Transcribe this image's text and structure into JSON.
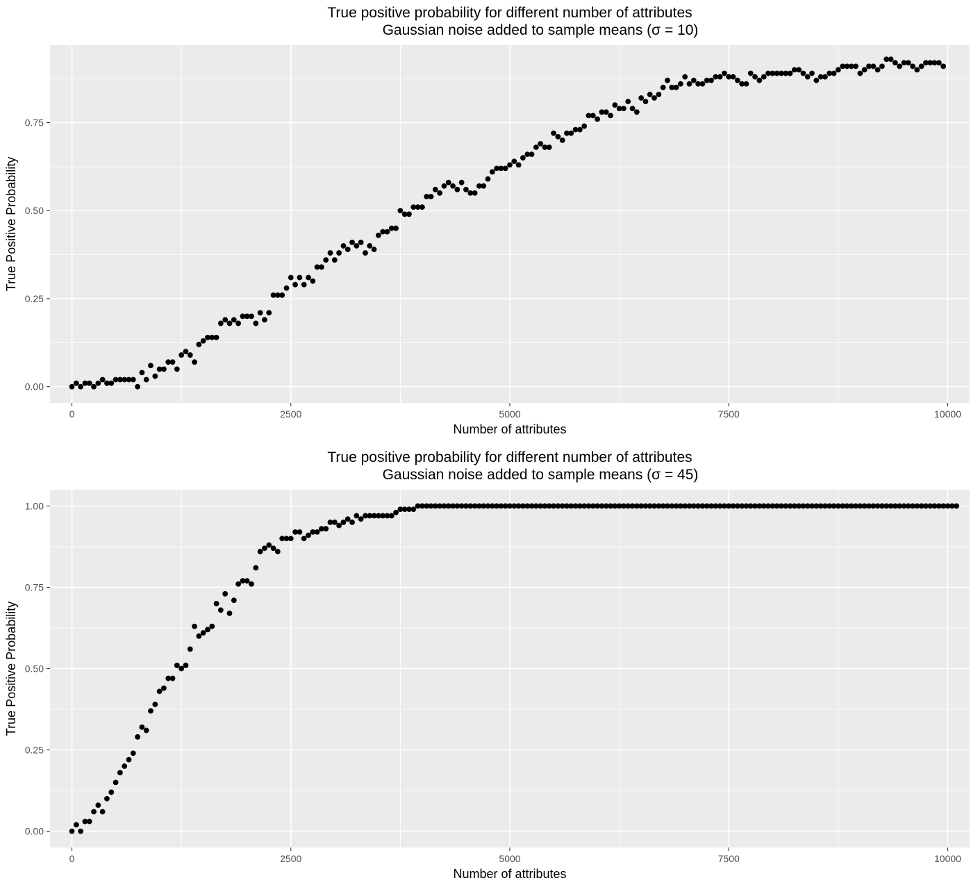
{
  "chart_data": [
    {
      "type": "scatter",
      "title": "True positive probability for different number of attributes",
      "subtitle": "Gaussian noise added to sample means  (σ = 10)",
      "xlabel": "Number of attributes",
      "ylabel": "True Positive Probability",
      "xlim": [
        -250,
        10250
      ],
      "ylim": [
        -0.046,
        0.97
      ],
      "xticks": [
        0,
        2500,
        5000,
        7500,
        10000
      ],
      "xtick_labels": [
        "0",
        "2500",
        "5000",
        "7500",
        "10000"
      ],
      "yticks": [
        0,
        0.25,
        0.5,
        0.75
      ],
      "ytick_labels": [
        "0.00",
        "0.25",
        "0.50",
        "0.75"
      ],
      "grid": true,
      "legend": "none",
      "point_color": "#000000",
      "x_start": 0,
      "x_step": 50,
      "y": [
        0.0,
        0.01,
        0.0,
        0.01,
        0.01,
        0.0,
        0.01,
        0.02,
        0.01,
        0.01,
        0.02,
        0.02,
        0.02,
        0.02,
        0.02,
        0.0,
        0.04,
        0.02,
        0.06,
        0.03,
        0.05,
        0.05,
        0.07,
        0.07,
        0.05,
        0.09,
        0.1,
        0.09,
        0.07,
        0.12,
        0.13,
        0.14,
        0.14,
        0.14,
        0.18,
        0.19,
        0.18,
        0.19,
        0.18,
        0.2,
        0.2,
        0.2,
        0.18,
        0.21,
        0.19,
        0.21,
        0.26,
        0.26,
        0.26,
        0.28,
        0.31,
        0.29,
        0.31,
        0.29,
        0.31,
        0.3,
        0.34,
        0.34,
        0.36,
        0.38,
        0.36,
        0.38,
        0.4,
        0.39,
        0.41,
        0.4,
        0.41,
        0.38,
        0.4,
        0.39,
        0.43,
        0.44,
        0.44,
        0.45,
        0.45,
        0.5,
        0.49,
        0.49,
        0.51,
        0.51,
        0.51,
        0.54,
        0.54,
        0.56,
        0.55,
        0.57,
        0.58,
        0.57,
        0.56,
        0.58,
        0.56,
        0.55,
        0.55,
        0.57,
        0.57,
        0.59,
        0.61,
        0.62,
        0.62,
        0.62,
        0.63,
        0.64,
        0.63,
        0.65,
        0.66,
        0.66,
        0.68,
        0.69,
        0.68,
        0.68,
        0.72,
        0.71,
        0.7,
        0.72,
        0.72,
        0.73,
        0.73,
        0.74,
        0.77,
        0.77,
        0.76,
        0.78,
        0.78,
        0.77,
        0.8,
        0.79,
        0.79,
        0.81,
        0.79,
        0.78,
        0.82,
        0.81,
        0.83,
        0.82,
        0.83,
        0.85,
        0.87,
        0.85,
        0.85,
        0.86,
        0.88,
        0.86,
        0.87,
        0.86,
        0.86,
        0.87,
        0.87,
        0.88,
        0.88,
        0.89,
        0.88,
        0.88,
        0.87,
        0.86,
        0.86,
        0.89,
        0.88,
        0.87,
        0.88,
        0.89,
        0.89,
        0.89,
        0.89,
        0.89,
        0.89,
        0.9,
        0.9,
        0.89,
        0.88,
        0.89,
        0.87,
        0.88,
        0.88,
        0.89,
        0.89,
        0.9,
        0.91,
        0.91,
        0.91,
        0.91,
        0.89,
        0.9,
        0.91,
        0.91,
        0.9,
        0.91,
        0.93,
        0.93,
        0.92,
        0.91,
        0.92,
        0.92,
        0.91,
        0.9,
        0.91,
        0.92,
        0.92,
        0.92,
        0.92,
        0.91
      ]
    },
    {
      "type": "scatter",
      "title": "True positive probability for different number of attributes",
      "subtitle": "Gaussian noise added to sample means  (σ = 45)",
      "xlabel": "Number of attributes",
      "ylabel": "True Positive Probability",
      "xlim": [
        -250,
        10250
      ],
      "ylim": [
        -0.05,
        1.05
      ],
      "xticks": [
        0,
        2500,
        5000,
        7500,
        10000
      ],
      "xtick_labels": [
        "0",
        "2500",
        "5000",
        "7500",
        "10000"
      ],
      "yticks": [
        0,
        0.25,
        0.5,
        0.75,
        1.0
      ],
      "ytick_labels": [
        "0.00",
        "0.25",
        "0.50",
        "0.75",
        "1.00"
      ],
      "grid": true,
      "legend": "none",
      "point_color": "#000000",
      "x_start": 0,
      "x_step": 50,
      "y": [
        0.0,
        0.02,
        0.0,
        0.03,
        0.03,
        0.06,
        0.08,
        0.06,
        0.1,
        0.12,
        0.15,
        0.18,
        0.2,
        0.22,
        0.24,
        0.29,
        0.32,
        0.31,
        0.37,
        0.39,
        0.43,
        0.44,
        0.47,
        0.47,
        0.51,
        0.5,
        0.51,
        0.56,
        0.63,
        0.6,
        0.61,
        0.62,
        0.63,
        0.7,
        0.68,
        0.73,
        0.67,
        0.71,
        0.76,
        0.77,
        0.77,
        0.76,
        0.81,
        0.86,
        0.87,
        0.88,
        0.87,
        0.86,
        0.9,
        0.9,
        0.9,
        0.92,
        0.92,
        0.9,
        0.91,
        0.92,
        0.92,
        0.93,
        0.93,
        0.95,
        0.95,
        0.94,
        0.95,
        0.96,
        0.95,
        0.97,
        0.96,
        0.97,
        0.97,
        0.97,
        0.97,
        0.97,
        0.97,
        0.97,
        0.98,
        0.99,
        0.99,
        0.99,
        0.99,
        1.0,
        1.0,
        1.0,
        1.0,
        1.0,
        1.0,
        1.0,
        1.0,
        1.0,
        1.0,
        1.0,
        1.0,
        1.0,
        1.0,
        1.0,
        1.0,
        1.0,
        1.0,
        1.0,
        1.0,
        1.0,
        1.0,
        1.0,
        1.0,
        1.0,
        1.0,
        1.0,
        1.0,
        1.0,
        1.0,
        1.0,
        1.0,
        1.0,
        1.0,
        1.0,
        1.0,
        1.0,
        1.0,
        1.0,
        1.0,
        1.0,
        1.0,
        1.0,
        1.0,
        1.0,
        1.0,
        1.0,
        1.0,
        1.0,
        1.0,
        1.0,
        1.0,
        1.0,
        1.0,
        1.0,
        1.0,
        1.0,
        1.0,
        1.0,
        1.0,
        1.0,
        1.0,
        1.0,
        1.0,
        1.0,
        1.0,
        1.0,
        1.0,
        1.0,
        1.0,
        1.0,
        1.0,
        1.0,
        1.0,
        1.0,
        1.0,
        1.0,
        1.0,
        1.0,
        1.0,
        1.0,
        1.0,
        1.0,
        1.0,
        1.0,
        1.0,
        1.0,
        1.0,
        1.0,
        1.0,
        1.0,
        1.0,
        1.0,
        1.0,
        1.0,
        1.0,
        1.0,
        1.0,
        1.0,
        1.0,
        1.0,
        1.0,
        1.0,
        1.0,
        1.0,
        1.0,
        1.0,
        1.0,
        1.0,
        1.0,
        1.0,
        1.0,
        1.0,
        1.0,
        1.0,
        1.0,
        1.0,
        1.0,
        1.0,
        1.0,
        1.0,
        1.0,
        1.0,
        1.0
      ]
    }
  ]
}
